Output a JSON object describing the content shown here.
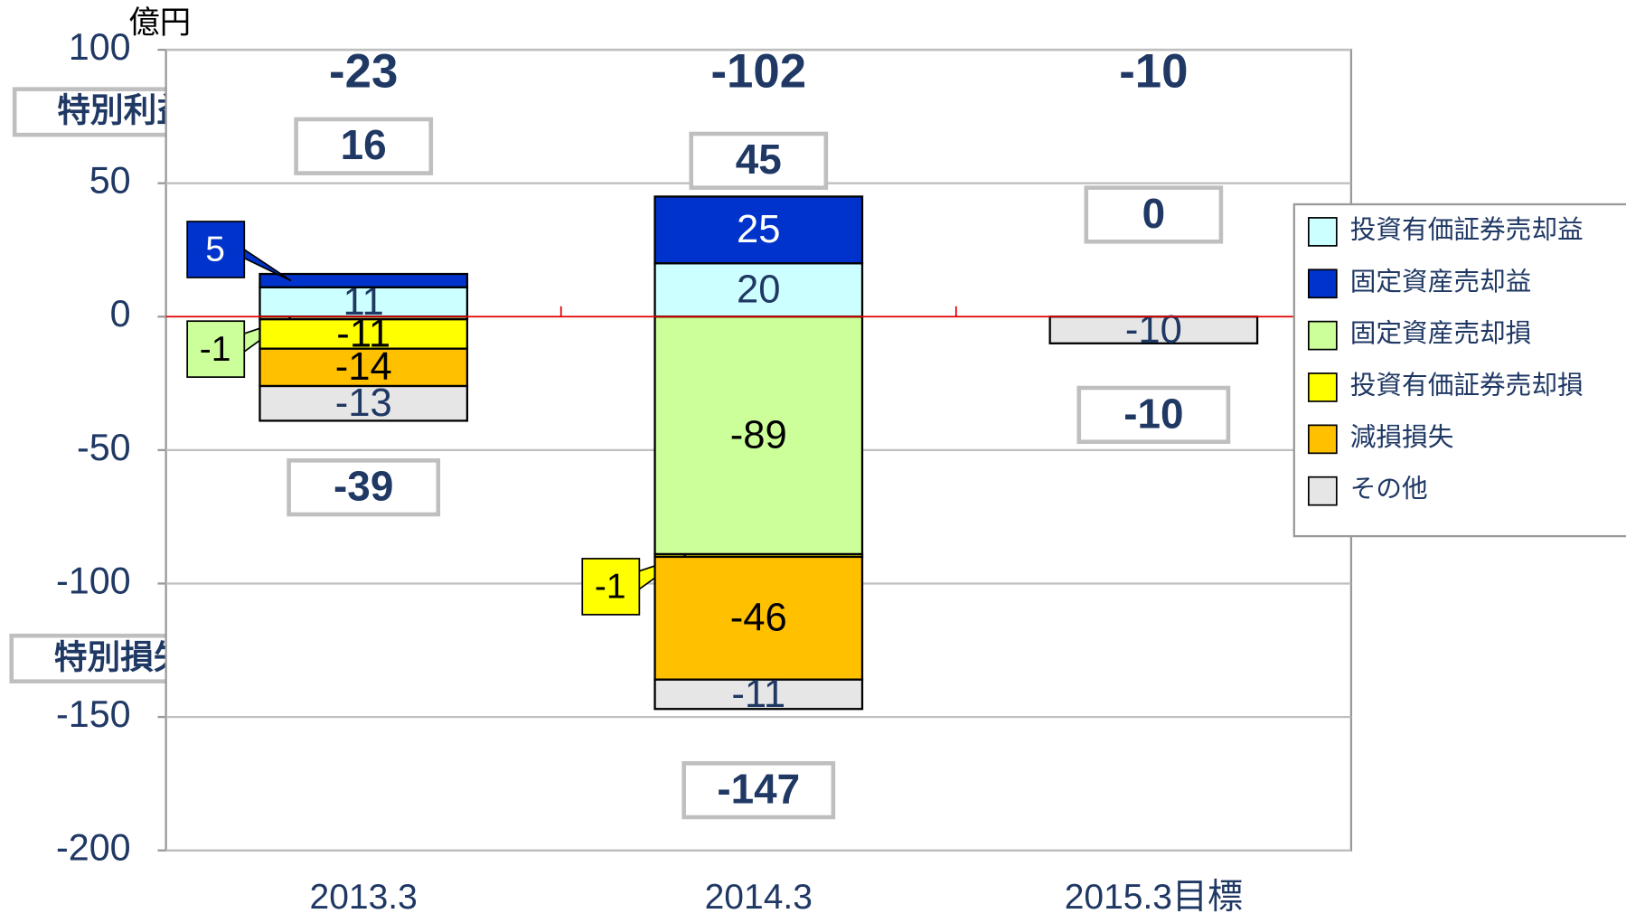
{
  "chart_data": {
    "type": "stacked_bar",
    "unit": "億円",
    "gain_label": "特別利益",
    "loss_label": "特別損失",
    "categories": [
      "2013.3",
      "2014.3",
      "2015.3目標"
    ],
    "series": [
      {
        "name": "投資有価証券売却益",
        "color": "#ccffff",
        "values": [
          11,
          20,
          null
        ]
      },
      {
        "name": "固定資産売却益",
        "color": "#0033cc",
        "values": [
          5,
          25,
          null
        ]
      },
      {
        "name": "固定資産売却損",
        "color": "#ccff99",
        "values": [
          -1,
          -89,
          null
        ]
      },
      {
        "name": "投資有価証券売却損",
        "color": "#ffff00",
        "values": [
          -11,
          -1,
          null
        ]
      },
      {
        "name": "減損損失",
        "color": "#ffc000",
        "values": [
          -14,
          -46,
          null
        ]
      },
      {
        "name": "その他",
        "color": "#e6e6e6",
        "values": [
          -13,
          -11,
          -10
        ]
      }
    ],
    "net_totals": [
      -23,
      -102,
      -10
    ],
    "gain_totals": [
      16,
      45,
      0
    ],
    "loss_totals": [
      -39,
      -147,
      -10
    ],
    "ylim": [
      -200,
      100
    ],
    "yticks": [
      -200,
      -150,
      -100,
      -50,
      0,
      50,
      100
    ],
    "grid": true,
    "legend": "right"
  }
}
